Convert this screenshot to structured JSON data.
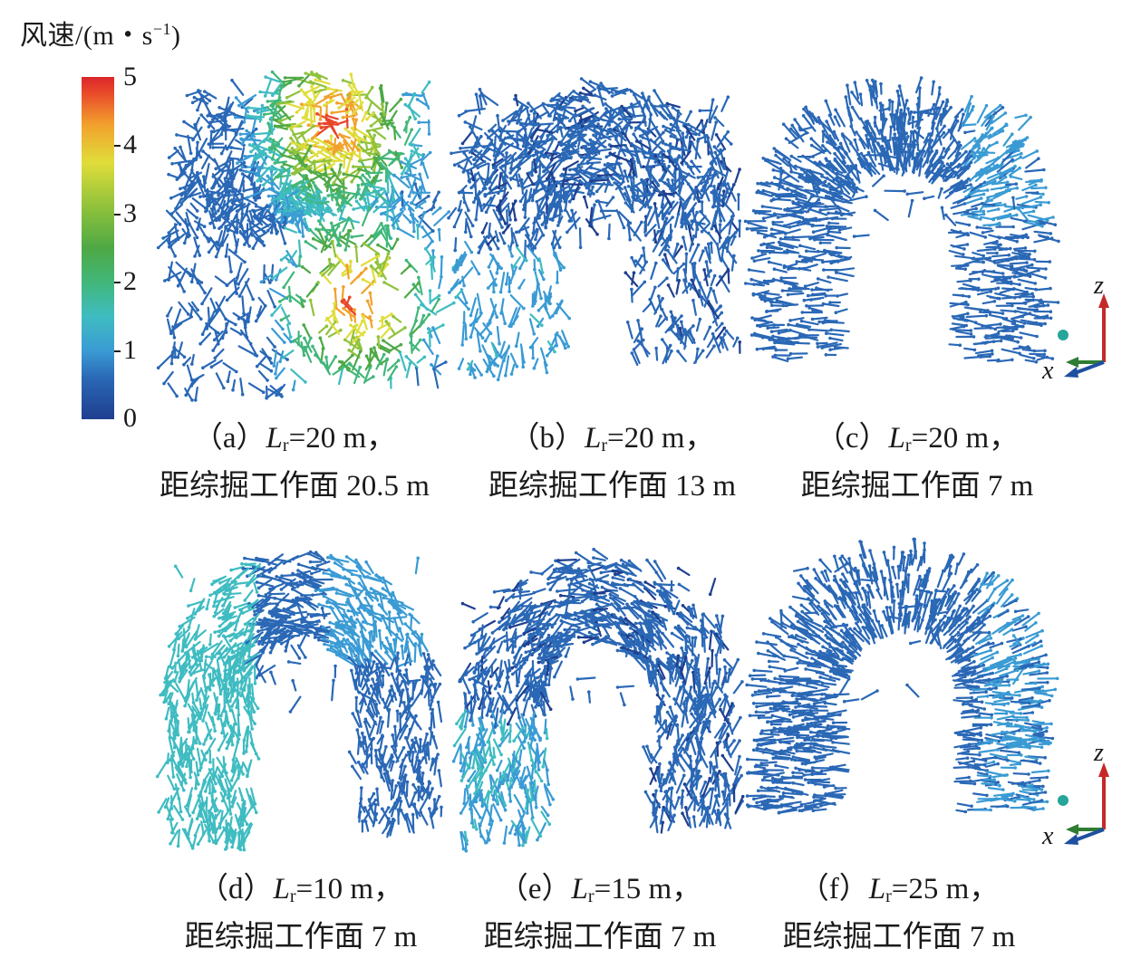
{
  "legend": {
    "title": "风速/(m・s",
    "title_sup": "−1",
    "title_end": ")",
    "ticks": [
      "5",
      "4",
      "3",
      "2",
      "1",
      "0"
    ],
    "colors": [
      "#1f3f8f",
      "#2a68b6",
      "#3a9bd4",
      "#3fbcc1",
      "#41b77a",
      "#4ea845",
      "#8fc23b",
      "#e0dd3a",
      "#f2a12d",
      "#e8442a",
      "#d9262a"
    ]
  },
  "panels": [
    {
      "label": "（a）",
      "var": "L",
      "sub": "r",
      "value": "=20 m，",
      "line2": "距综掘工作面 20.5 m"
    },
    {
      "label": "（b）",
      "var": "L",
      "sub": "r",
      "value": "=20 m，",
      "line2": "距综掘工作面 13 m"
    },
    {
      "label": "（c）",
      "var": "L",
      "sub": "r",
      "value": "=20 m，",
      "line2": "距综掘工作面 7 m"
    },
    {
      "label": "（d）",
      "var": "L",
      "sub": "r",
      "value": "=10 m，",
      "line2": "距综掘工作面 7 m"
    },
    {
      "label": "（e）",
      "var": "L",
      "sub": "r",
      "value": "=15 m，",
      "line2": "距综掘工作面 7 m"
    },
    {
      "label": "（f）",
      "var": "L",
      "sub": "r",
      "value": "=25 m，",
      "line2": "距综掘工作面 7 m"
    }
  ],
  "axes": {
    "z": "z",
    "x": "x"
  }
}
